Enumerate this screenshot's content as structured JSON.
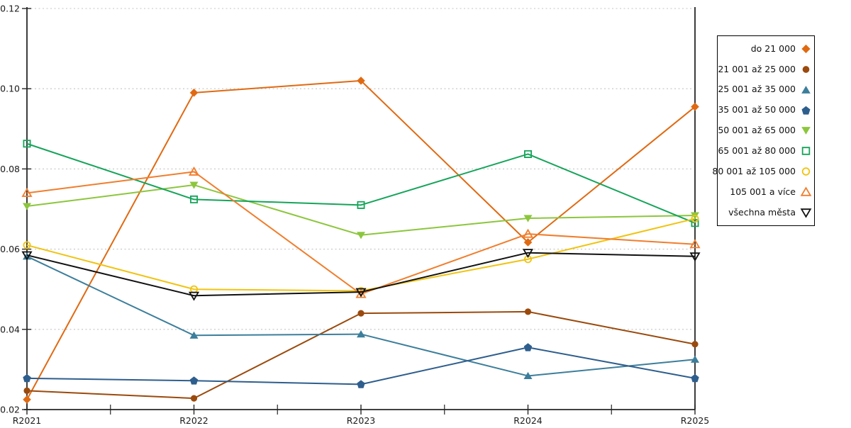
{
  "chart_data": {
    "type": "line",
    "title": "",
    "xlabel": "",
    "ylabel": "",
    "categories": [
      "R2021",
      "R2022",
      "R2023",
      "R2024",
      "R2025"
    ],
    "ylim": [
      0.02,
      0.12
    ],
    "yticks": [
      0.02,
      0.04,
      0.06,
      0.08,
      0.1,
      0.12
    ],
    "ytick_labels": [
      "0.02",
      "0.04",
      "0.06",
      "0.08",
      "0.10",
      "0.12"
    ],
    "grid": "horizontal-dashed",
    "legend_position": "right-outside-box",
    "series": [
      {
        "name": "do 21 000",
        "color": "#e06a12",
        "marker": "diamond",
        "fill": "filled",
        "values": [
          0.0225,
          0.099,
          0.102,
          0.0617,
          0.0955
        ]
      },
      {
        "name": "21 001 až 25 000",
        "color": "#9a4a0d",
        "marker": "circle",
        "fill": "filled",
        "values": [
          0.0247,
          0.0228,
          0.044,
          0.0444,
          0.0363
        ]
      },
      {
        "name": "25 001 až 35 000",
        "color": "#3c7e9b",
        "marker": "triangle-up",
        "fill": "filled",
        "values": [
          0.0582,
          0.0385,
          0.0388,
          0.0284,
          0.0325
        ]
      },
      {
        "name": "35 001 až 50 000",
        "color": "#2e5e8d",
        "marker": "pentagon",
        "fill": "filled",
        "values": [
          0.0278,
          0.0272,
          0.0263,
          0.0355,
          0.0278
        ]
      },
      {
        "name": "50 001 až 65 000",
        "color": "#8cc63d",
        "marker": "triangle-down",
        "fill": "filled",
        "values": [
          0.0707,
          0.076,
          0.0635,
          0.0677,
          0.0684
        ]
      },
      {
        "name": "65 001 až 80 000",
        "color": "#16a45a",
        "marker": "square",
        "fill": "open",
        "values": [
          0.0863,
          0.0724,
          0.071,
          0.0837,
          0.0665
        ]
      },
      {
        "name": "80 001 až 105 000",
        "color": "#f0c310",
        "marker": "circle",
        "fill": "open",
        "values": [
          0.061,
          0.05,
          0.0496,
          0.0575,
          0.0676
        ]
      },
      {
        "name": "105 001 a více",
        "color": "#f07e2d",
        "marker": "triangle-up",
        "fill": "open",
        "values": [
          0.074,
          0.0793,
          0.0488,
          0.0638,
          0.0612
        ]
      },
      {
        "name": "všechna města",
        "color": "#111111",
        "marker": "triangle-down",
        "fill": "open",
        "values": [
          0.0585,
          0.0484,
          0.0493,
          0.0591,
          0.0582
        ]
      }
    ]
  },
  "style": {
    "axis_color": "#262626",
    "grid_color": "#c4c4c4",
    "tick_label_color": "#1a1a1a",
    "background": "#ffffff"
  }
}
